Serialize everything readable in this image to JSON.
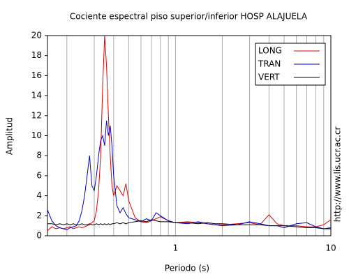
{
  "chart_data": {
    "type": "line",
    "title": "Cociente espectral piso superior/inferior  HOSP ALAJUELA",
    "x_label": "Periodo (s)",
    "y_label": "Amplitud",
    "side_note": "http://www.lis.ucr.ac.cr",
    "x_log": true,
    "grid_x": true,
    "legend": "top-right",
    "xlim": [
      0.15,
      10
    ],
    "ylim": [
      0,
      20
    ],
    "xticks": [
      1,
      10
    ],
    "x_minor_ticks": [
      0.2,
      0.3,
      0.4,
      0.5,
      0.6,
      0.7,
      0.8,
      0.9,
      2,
      3,
      4,
      5,
      6,
      7,
      8,
      9
    ],
    "yticks": [
      0,
      2,
      4,
      6,
      8,
      10,
      12,
      14,
      16,
      18,
      20
    ],
    "x": [
      0.15,
      0.16,
      0.17,
      0.18,
      0.19,
      0.2,
      0.21,
      0.22,
      0.23,
      0.24,
      0.25,
      0.26,
      0.27,
      0.28,
      0.29,
      0.3,
      0.31,
      0.32,
      0.33,
      0.34,
      0.35,
      0.36,
      0.37,
      0.38,
      0.39,
      0.4,
      0.42,
      0.44,
      0.46,
      0.48,
      0.5,
      0.55,
      0.6,
      0.65,
      0.7,
      0.75,
      0.8,
      0.9,
      1,
      1.2,
      1.4,
      1.6,
      1.8,
      2,
      2.5,
      3,
      3.5,
      4,
      4.5,
      5,
      6,
      7,
      8,
      9,
      10
    ],
    "series": [
      {
        "name": "LONG",
        "color": "#e00000",
        "values": [
          0.5,
          0.9,
          0.7,
          0.8,
          0.7,
          0.8,
          0.9,
          0.7,
          0.8,
          0.9,
          0.8,
          0.9,
          1.0,
          1.1,
          1.3,
          1.5,
          2.5,
          4.5,
          8,
          15,
          20,
          17,
          12,
          8,
          5,
          4,
          5,
          4.5,
          4.0,
          5.2,
          3.5,
          1.8,
          1.4,
          1.3,
          1.5,
          1.7,
          1.9,
          1.5,
          1.3,
          1.4,
          1.3,
          1.2,
          1.1,
          1.1,
          1.2,
          1.3,
          1.1,
          2.1,
          1.2,
          1.0,
          1.0,
          0.9,
          0.9,
          1.1,
          1.6
        ]
      },
      {
        "name": "TRAN",
        "color": "#0000cc",
        "values": [
          2.6,
          1.5,
          1.0,
          0.8,
          0.7,
          0.6,
          0.8,
          0.9,
          1.0,
          1.5,
          2.5,
          4,
          6,
          8,
          5,
          4.5,
          6,
          8,
          9.5,
          10,
          9,
          11.5,
          10,
          11,
          9,
          6,
          3,
          2.3,
          2.8,
          2.2,
          1.8,
          1.6,
          1.4,
          1.7,
          1.5,
          2.3,
          2.0,
          1.5,
          1.3,
          1.2,
          1.4,
          1.2,
          1.1,
          1.0,
          1.1,
          1.4,
          1.2,
          1.0,
          1.0,
          0.8,
          1.2,
          1.3,
          0.9,
          0.7,
          0.8
        ]
      },
      {
        "name": "VERT",
        "color": "#000000",
        "values": [
          1.2,
          1.2,
          1.1,
          1.2,
          1.1,
          1.2,
          1.1,
          1.2,
          1.1,
          1.1,
          1.2,
          1.1,
          1.1,
          1.2,
          1.1,
          1.1,
          1.2,
          1.1,
          1.2,
          1.1,
          1.2,
          1.1,
          1.2,
          1.1,
          1.2,
          1.2,
          1.3,
          1.2,
          1.3,
          1.2,
          1.3,
          1.4,
          1.5,
          1.4,
          1.6,
          1.5,
          1.4,
          1.4,
          1.3,
          1.3,
          1.2,
          1.3,
          1.2,
          1.2,
          1.1,
          1.1,
          1.1,
          1.0,
          1.0,
          1.0,
          0.9,
          0.8,
          0.8,
          0.7,
          0.7
        ]
      }
    ]
  }
}
